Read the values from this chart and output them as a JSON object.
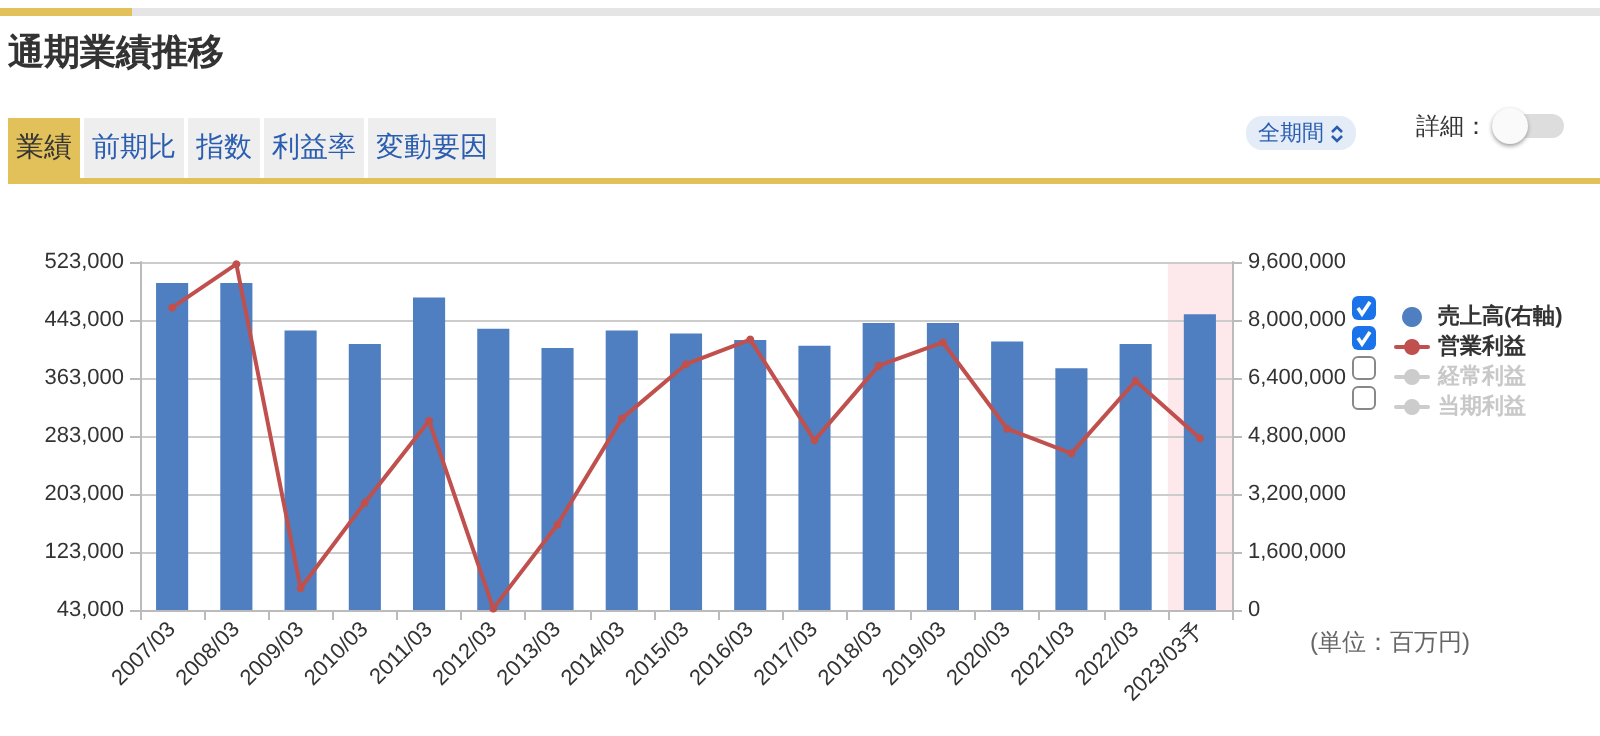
{
  "chart_data": {
    "type": "bar",
    "title": "通期業績推移",
    "categories": [
      "2007/03",
      "2008/03",
      "2009/03",
      "2010/03",
      "2011/03",
      "2012/03",
      "2013/03",
      "2014/03",
      "2015/03",
      "2016/03",
      "2017/03",
      "2018/03",
      "2019/03",
      "2020/03",
      "2021/03",
      "2022/03",
      "2023/03予"
    ],
    "series": [
      {
        "name": "売上高(右軸)",
        "axis": "y2",
        "color": "#4f7fc0",
        "values": [
          9020000,
          9020000,
          7710000,
          7340000,
          8620000,
          7760000,
          7230000,
          7710000,
          7630000,
          7450000,
          7290000,
          7920000,
          7920000,
          7410000,
          6670000,
          7340000,
          8160000
        ]
      },
      {
        "name": "営業利益",
        "type": "line",
        "color": "#c0504d",
        "values": [
          460000,
          520000,
          73000,
          191000,
          304000,
          45000,
          161000,
          307000,
          382000,
          416000,
          277000,
          380000,
          412000,
          293000,
          259000,
          359000,
          280000
        ]
      },
      {
        "name": "経常利益",
        "type": "line",
        "color": "#cccccc",
        "values": [
          null,
          null,
          null,
          null,
          null,
          null,
          null,
          null,
          null,
          null,
          null,
          null,
          null,
          null,
          null,
          null,
          null
        ]
      },
      {
        "name": "当期利益",
        "type": "line",
        "color": "#cccccc",
        "values": [
          null,
          null,
          null,
          null,
          null,
          null,
          null,
          null,
          null,
          null,
          null,
          null,
          null,
          null,
          null,
          null,
          null
        ]
      }
    ],
    "ylim": [
      43000,
      523000
    ],
    "yticks": [
      {
        "value": 43000,
        "label": "43,000"
      },
      {
        "value": 123000,
        "label": "123,000"
      },
      {
        "value": 203000,
        "label": "203,000"
      },
      {
        "value": 283000,
        "label": "283,000"
      },
      {
        "value": 363000,
        "label": "363,000"
      },
      {
        "value": 443000,
        "label": "443,000"
      },
      {
        "value": 523000,
        "label": "523,000"
      }
    ],
    "y2lim": [
      0,
      9600000
    ],
    "y2ticks": [
      0,
      {
        "value": 1600000,
        "label": "1,600,000"
      },
      {
        "value": 3200000,
        "label": "3,200,000"
      },
      {
        "value": 4800000,
        "label": "4,800,000"
      },
      {
        "value": 6400000,
        "label": "6,400,000"
      },
      {
        "value": 8000000,
        "label": "8,000,000"
      },
      {
        "value": 9600000,
        "label": "9,600,000"
      }
    ],
    "bands": [
      {
        "axis": "x",
        "from": "2023/03予",
        "to": "2023/03予",
        "color": "#fde8ec"
      }
    ],
    "annotations": [
      "業績",
      "前期比",
      "指数",
      "利益率",
      "変動要因",
      "全期間",
      "詳細：",
      "(単位：百万円)"
    ],
    "grid": "y",
    "legend": "right",
    "marker": "circle",
    "line_style": "solid"
  }
}
